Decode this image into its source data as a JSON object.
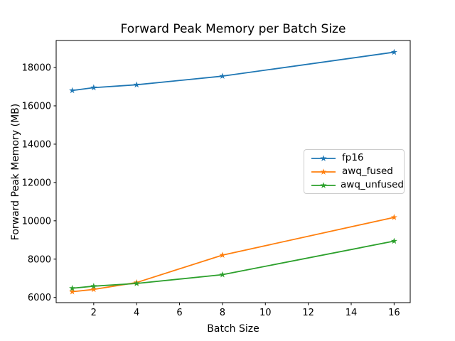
{
  "chart_data": {
    "type": "line",
    "title": "Forward Peak Memory per Batch Size",
    "xlabel": "Batch Size",
    "ylabel": "Forward Peak Memory (MB)",
    "x": [
      1,
      2,
      4,
      8,
      16
    ],
    "series": [
      {
        "name": "fp16",
        "color": "#1f77b4",
        "values": [
          16800,
          16950,
          17100,
          17550,
          18800
        ]
      },
      {
        "name": "awq_fused",
        "color": "#ff7f0e",
        "values": [
          6300,
          6420,
          6780,
          8210,
          10180
        ]
      },
      {
        "name": "awq_unfused",
        "color": "#2ca02c",
        "values": [
          6480,
          6590,
          6730,
          7190,
          8940
        ]
      }
    ],
    "marker": "star",
    "xticks": [
      2,
      4,
      6,
      8,
      10,
      12,
      14,
      16
    ],
    "yticks": [
      6000,
      8000,
      10000,
      12000,
      14000,
      16000,
      18000
    ],
    "xlim": [
      0.25,
      16.75
    ],
    "ylim": [
      5730,
      19410
    ],
    "grid": false,
    "legend_position": "center right",
    "axis_color": "#000000",
    "background_color": "#ffffff"
  }
}
